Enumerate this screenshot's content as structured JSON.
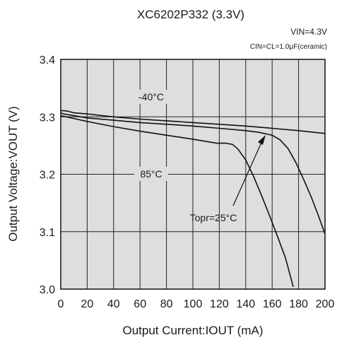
{
  "chart_data": {
    "type": "line",
    "title": "XC6202P332 (3.3V)",
    "conditions": [
      "VIN=4.3V",
      "CIN=CL=1.0μF(ceramic)"
    ],
    "xlabel": "Output Current:IOUT (mA)",
    "ylabel": "Output Voltage:VOUT (V)",
    "xlim": [
      0,
      200
    ],
    "ylim": [
      3.0,
      3.4
    ],
    "xticks": [
      0,
      20,
      40,
      60,
      80,
      100,
      120,
      140,
      160,
      180,
      200
    ],
    "xtick_labels": [
      "0",
      "20",
      "40",
      "60",
      "80",
      "100",
      "120",
      "140",
      "160",
      "180",
      "200"
    ],
    "yticks": [
      3.0,
      3.1,
      3.2,
      3.3,
      3.4
    ],
    "ytick_labels": [
      "3.0",
      "3.1",
      "3.2",
      "3.3",
      "3.4"
    ],
    "grid": true,
    "series": [
      {
        "name": "-40°C",
        "x": [
          0,
          5,
          10,
          20,
          40,
          60,
          80,
          100,
          120,
          140,
          160,
          180,
          200
        ],
        "y": [
          3.311,
          3.31,
          3.307,
          3.305,
          3.3,
          3.296,
          3.293,
          3.29,
          3.287,
          3.284,
          3.28,
          3.276,
          3.271
        ]
      },
      {
        "name": "Topr=25°C",
        "x": [
          0,
          2,
          10,
          20,
          40,
          60,
          80,
          100,
          120,
          140,
          150,
          160,
          166,
          172,
          178,
          184,
          190,
          195,
          200
        ],
        "y": [
          3.307,
          3.305,
          3.302,
          3.298,
          3.294,
          3.29,
          3.287,
          3.284,
          3.28,
          3.276,
          3.273,
          3.268,
          3.26,
          3.245,
          3.22,
          3.19,
          3.158,
          3.128,
          3.096
        ]
      },
      {
        "name": "85°C",
        "x": [
          0,
          20,
          40,
          60,
          80,
          100,
          118,
          125,
          130,
          134,
          140,
          146,
          152,
          158,
          164,
          170,
          176
        ],
        "y": [
          3.302,
          3.292,
          3.283,
          3.275,
          3.268,
          3.261,
          3.254,
          3.254,
          3.252,
          3.244,
          3.225,
          3.196,
          3.163,
          3.128,
          3.092,
          3.055,
          3.004
        ]
      }
    ],
    "annotations": [
      {
        "text": "-40°C"
      },
      {
        "text": "85°C"
      },
      {
        "text": "Topr=25°C"
      }
    ]
  }
}
